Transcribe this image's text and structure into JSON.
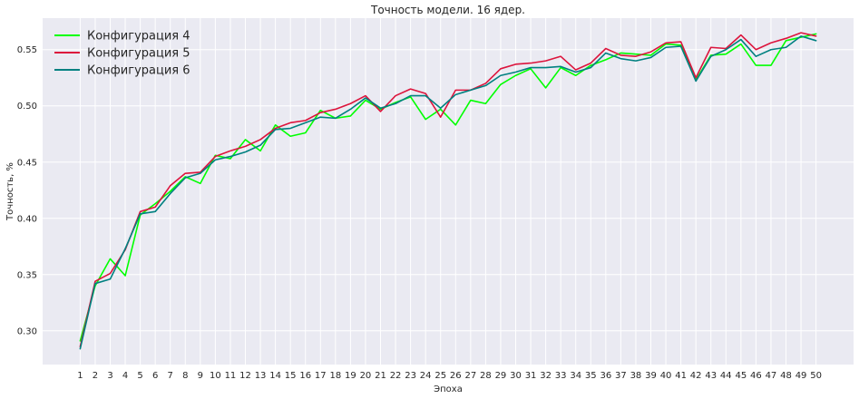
{
  "chart_data": {
    "type": "line",
    "title": "Точность модели. 16 ядер.",
    "xlabel": "Эпоха",
    "ylabel": "Точность, %",
    "x": [
      1,
      2,
      3,
      4,
      5,
      6,
      7,
      8,
      9,
      10,
      11,
      12,
      13,
      14,
      15,
      16,
      17,
      18,
      19,
      20,
      21,
      22,
      23,
      24,
      25,
      26,
      27,
      28,
      29,
      30,
      31,
      32,
      33,
      34,
      35,
      36,
      37,
      38,
      39,
      40,
      41,
      42,
      43,
      44,
      45,
      46,
      47,
      48,
      49,
      50
    ],
    "xlim": [
      -1.5,
      52.5
    ],
    "ylim": [
      0.27,
      0.578
    ],
    "yticks": [
      0.3,
      0.35,
      0.4,
      0.45,
      0.5,
      0.55
    ],
    "ytick_labels": [
      "0.30",
      "0.35",
      "0.40",
      "0.45",
      "0.50",
      "0.55"
    ],
    "grid": true,
    "legend_position": "upper-left",
    "series": [
      {
        "name": "Конфигурация 4",
        "color": "#00ff00",
        "values": [
          0.291,
          0.34,
          0.364,
          0.349,
          0.403,
          0.413,
          0.424,
          0.437,
          0.431,
          0.456,
          0.453,
          0.47,
          0.46,
          0.483,
          0.473,
          0.476,
          0.496,
          0.489,
          0.491,
          0.505,
          0.497,
          0.503,
          0.508,
          0.488,
          0.497,
          0.483,
          0.505,
          0.502,
          0.519,
          0.527,
          0.533,
          0.516,
          0.534,
          0.527,
          0.536,
          0.541,
          0.547,
          0.546,
          0.545,
          0.555,
          0.554,
          0.523,
          0.545,
          0.546,
          0.555,
          0.536,
          0.536,
          0.558,
          0.561,
          0.564
        ]
      },
      {
        "name": "Конфигурация 5",
        "color": "#dc143c",
        "values": [
          0.286,
          0.344,
          0.351,
          0.372,
          0.406,
          0.41,
          0.429,
          0.44,
          0.441,
          0.455,
          0.46,
          0.464,
          0.47,
          0.48,
          0.485,
          0.487,
          0.494,
          0.497,
          0.502,
          0.509,
          0.495,
          0.509,
          0.515,
          0.511,
          0.49,
          0.514,
          0.514,
          0.52,
          0.533,
          0.537,
          0.538,
          0.54,
          0.544,
          0.532,
          0.538,
          0.551,
          0.545,
          0.544,
          0.548,
          0.556,
          0.557,
          0.525,
          0.552,
          0.551,
          0.563,
          0.55,
          0.556,
          0.56,
          0.565,
          0.562
        ]
      },
      {
        "name": "Конфигурация 6",
        "color": "#008080",
        "values": [
          0.284,
          0.342,
          0.346,
          0.373,
          0.404,
          0.406,
          0.422,
          0.436,
          0.44,
          0.452,
          0.455,
          0.459,
          0.465,
          0.479,
          0.48,
          0.485,
          0.49,
          0.489,
          0.497,
          0.507,
          0.498,
          0.502,
          0.509,
          0.509,
          0.498,
          0.51,
          0.514,
          0.518,
          0.527,
          0.53,
          0.534,
          0.534,
          0.535,
          0.53,
          0.534,
          0.547,
          0.542,
          0.54,
          0.543,
          0.552,
          0.553,
          0.522,
          0.544,
          0.55,
          0.559,
          0.544,
          0.55,
          0.552,
          0.562,
          0.558
        ]
      }
    ]
  }
}
